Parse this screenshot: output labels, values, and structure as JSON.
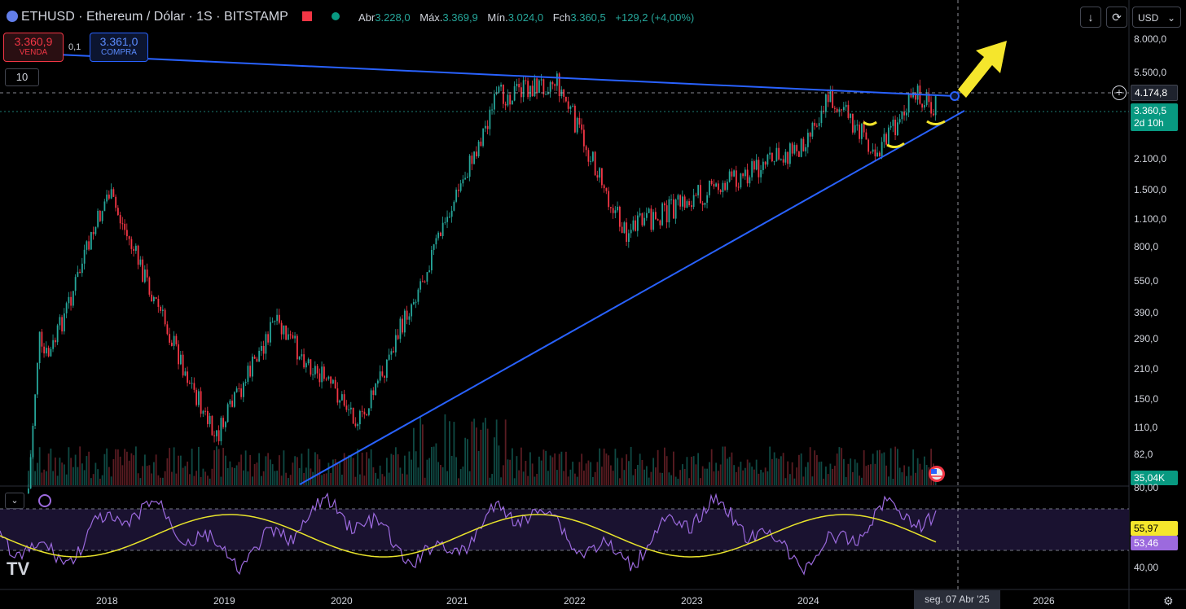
{
  "header": {
    "symbol": "ETHUSD · Ethereum / Dólar · 1S · BITSTAMP",
    "ohlc": [
      {
        "label": "Abr",
        "value": "3.228,0"
      },
      {
        "label": "Máx.",
        "value": "3.369,9"
      },
      {
        "label": "Mín.",
        "value": "3.024,0"
      },
      {
        "label": "Fch",
        "value": "3.360,5"
      }
    ],
    "change": "+129,2 (+4,00%)",
    "currency": "USD"
  },
  "trade": {
    "sell_price": "3.360,9",
    "sell_label": "VENDA",
    "spread": "0,1",
    "buy_price": "3.361,0",
    "buy_label": "COMPRA",
    "quantity": "10"
  },
  "price_axis": {
    "labels": [
      "8.000,0",
      "5.500,0",
      "2.100,0",
      "1.500,0",
      "1.100,0",
      "800,0",
      "550,0",
      "390,0",
      "290,0",
      "210,0",
      "150,0",
      "110,0",
      "82,0"
    ],
    "level_tag": "4.174,8",
    "last_price": "3.360,5",
    "countdown": "2d 10h",
    "volume": "35,04K"
  },
  "rsi_axis": {
    "labels": [
      "80,00",
      "40,00"
    ],
    "ma_value": "55,97",
    "rsi_value": "53,46"
  },
  "time_axis": {
    "years": [
      "2018",
      "2019",
      "2020",
      "2021",
      "2022",
      "2023",
      "2024",
      "2026"
    ],
    "crosshair_date": "seg. 07 Abr '25"
  },
  "colors": {
    "up": "#26a69a",
    "down": "#f23645",
    "trendline": "#2962ff",
    "arrow": "#f5e62c",
    "rsi": "#9c6ade",
    "rsi_ma": "#e8e32b"
  },
  "chart_data": {
    "type": "candlestick",
    "scale": "log",
    "milestones": [
      {
        "date": "2017-07",
        "price": 230
      },
      {
        "date": "2018-01",
        "price": 1400
      },
      {
        "date": "2018-12",
        "price": 90
      },
      {
        "date": "2019-06",
        "price": 330
      },
      {
        "date": "2020-03",
        "price": 110
      },
      {
        "date": "2021-05",
        "price": 4000
      },
      {
        "date": "2021-11",
        "price": 4800
      },
      {
        "date": "2022-06",
        "price": 900
      },
      {
        "date": "2023-12",
        "price": 2300
      },
      {
        "date": "2024-03",
        "price": 4000
      },
      {
        "date": "2024-08",
        "price": 2200
      },
      {
        "date": "2024-12",
        "price": 4100
      },
      {
        "date": "2025-03",
        "price": 3360
      }
    ]
  }
}
